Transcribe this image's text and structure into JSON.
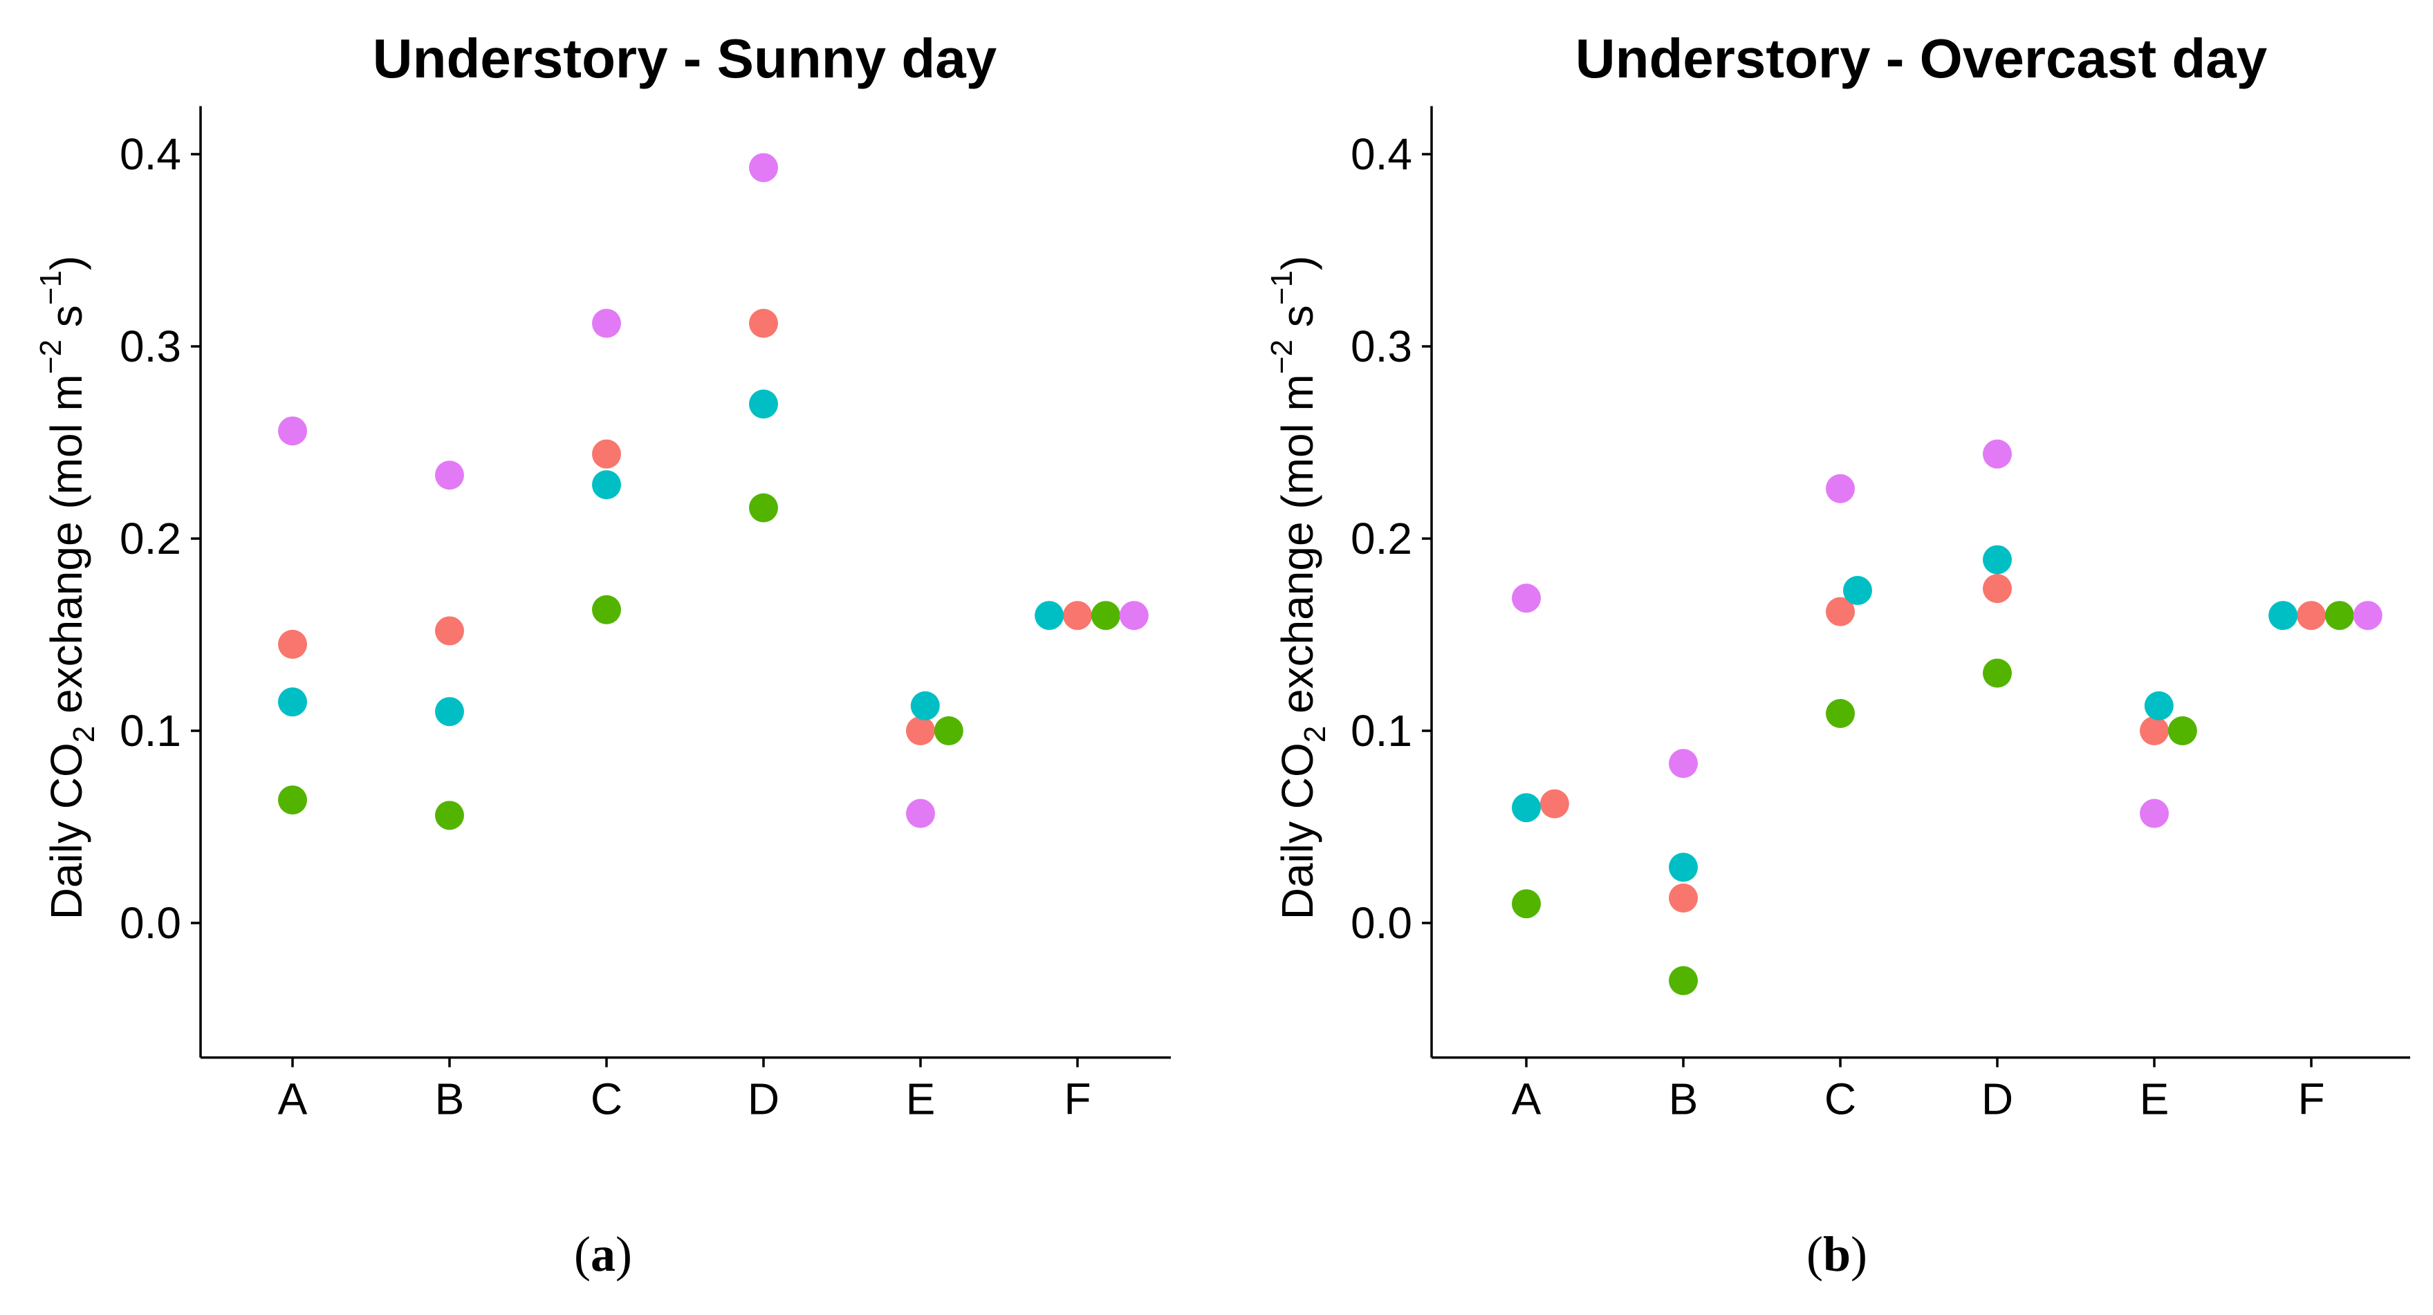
{
  "chart_data": [
    {
      "type": "scatter",
      "panel_label": "(a)",
      "panel_letter": "a",
      "title": "Understory - Sunny day",
      "ylabel": "Daily CO2 exchange (mol m-2 s-1)",
      "categories": [
        "A",
        "B",
        "C",
        "D",
        "E",
        "F"
      ],
      "ylim": [
        -0.07,
        0.425
      ],
      "yticks": [
        "0.0",
        "0.1",
        "0.2",
        "0.3",
        "0.4"
      ],
      "ytick_values": [
        0.0,
        0.1,
        0.2,
        0.3,
        0.4
      ],
      "grid": false,
      "series": [
        {
          "name": "series-red",
          "color": "#F8766D",
          "values": [
            0.145,
            0.152,
            0.244,
            0.312,
            0.1,
            0.16
          ],
          "offsets": [
            0,
            0,
            0,
            0,
            0,
            0
          ]
        },
        {
          "name": "series-green",
          "color": "#53B400",
          "values": [
            0.064,
            0.056,
            0.163,
            0.216,
            0.1,
            0.16
          ],
          "offsets": [
            0,
            0,
            0,
            0,
            0.18,
            0.18
          ]
        },
        {
          "name": "series-cyan",
          "color": "#00BFC4",
          "values": [
            0.115,
            0.11,
            0.228,
            0.27,
            0.113,
            0.16
          ],
          "offsets": [
            0,
            0,
            0,
            0,
            0.03,
            -0.18
          ]
        },
        {
          "name": "series-violet",
          "color": "#E27AF6",
          "values": [
            0.256,
            0.233,
            0.312,
            0.393,
            0.057,
            0.16
          ],
          "offsets": [
            0,
            0,
            0,
            0,
            0,
            0.36
          ]
        }
      ]
    },
    {
      "type": "scatter",
      "panel_label": "(b)",
      "panel_letter": "b",
      "title": "Understory - Overcast day",
      "ylabel": "Daily CO2 exchange (mol m-2 s-1)",
      "categories": [
        "A",
        "B",
        "C",
        "D",
        "E",
        "F"
      ],
      "ylim": [
        -0.07,
        0.425
      ],
      "yticks": [
        "0.0",
        "0.1",
        "0.2",
        "0.3",
        "0.4"
      ],
      "ytick_values": [
        0.0,
        0.1,
        0.2,
        0.3,
        0.4
      ],
      "grid": false,
      "series": [
        {
          "name": "series-red",
          "color": "#F8766D",
          "values": [
            0.062,
            0.013,
            0.162,
            0.174,
            0.1,
            0.16
          ],
          "offsets": [
            0.18,
            0,
            0,
            0,
            0,
            0
          ]
        },
        {
          "name": "series-green",
          "color": "#53B400",
          "values": [
            0.01,
            -0.03,
            0.109,
            0.13,
            0.1,
            0.16
          ],
          "offsets": [
            0,
            0,
            0,
            0,
            0.18,
            0.18
          ]
        },
        {
          "name": "series-cyan",
          "color": "#00BFC4",
          "values": [
            0.06,
            0.029,
            0.173,
            0.189,
            0.113,
            0.16
          ],
          "offsets": [
            0,
            0,
            0.11,
            0,
            0.03,
            -0.18
          ]
        },
        {
          "name": "series-violet",
          "color": "#E27AF6",
          "values": [
            0.169,
            0.083,
            0.226,
            0.244,
            0.057,
            0.16
          ],
          "offsets": [
            0,
            0,
            0,
            0,
            0,
            0.36
          ]
        }
      ]
    }
  ]
}
